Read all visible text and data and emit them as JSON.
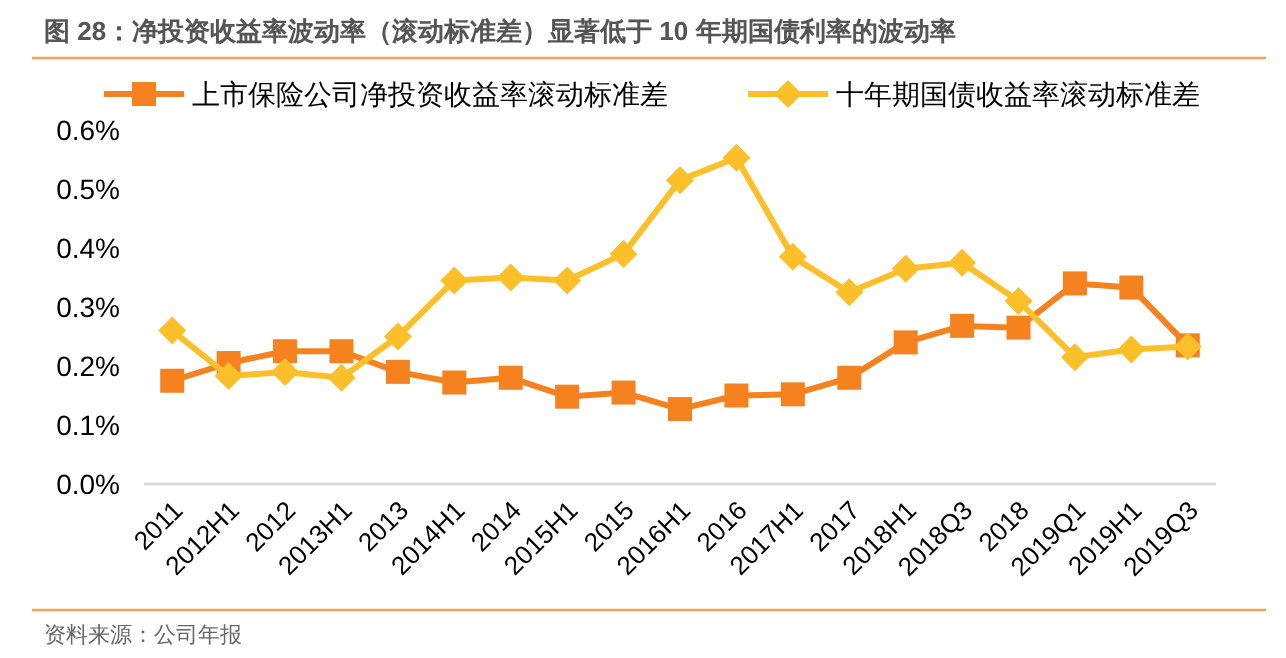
{
  "chart_data": {
    "type": "line",
    "title": "图 28：净投资收益率波动率（滚动标准差）显著低于 10 年期国债利率的波动率",
    "categories": [
      "2011",
      "2012H1",
      "2012",
      "2013H1",
      "2013",
      "2014H1",
      "2014",
      "2015H1",
      "2015",
      "2016H1",
      "2016",
      "2017H1",
      "2017",
      "2018H1",
      "2018Q3",
      "2018",
      "2019Q1",
      "2019H1",
      "2019Q3"
    ],
    "series": [
      {
        "name": "上市保险公司净投资收益率滚动标准差",
        "color": "#f5821f",
        "marker": "square",
        "values": [
          0.175,
          0.205,
          0.225,
          0.225,
          0.19,
          0.172,
          0.18,
          0.148,
          0.155,
          0.127,
          0.15,
          0.152,
          0.18,
          0.24,
          0.268,
          0.265,
          0.34,
          0.333,
          0.235
        ]
      },
      {
        "name": "十年期国债收益率滚动标准差",
        "color": "#fbbf2a",
        "marker": "diamond",
        "values": [
          0.26,
          0.183,
          0.19,
          0.18,
          0.25,
          0.345,
          0.35,
          0.345,
          0.39,
          0.515,
          0.553,
          0.385,
          0.325,
          0.365,
          0.375,
          0.31,
          0.215,
          0.228,
          0.233
        ]
      }
    ],
    "ylim": [
      0,
      0.6
    ],
    "yticks": [
      {
        "value": 0,
        "label": "0.0%"
      },
      {
        "value": 0.1,
        "label": "0.1%"
      },
      {
        "value": 0.2,
        "label": "0.2%"
      },
      {
        "value": 0.3,
        "label": "0.3%"
      },
      {
        "value": 0.4,
        "label": "0.4%"
      },
      {
        "value": 0.5,
        "label": "0.5%"
      },
      {
        "value": 0.6,
        "label": "0.6%"
      }
    ],
    "grid": false,
    "legend": "top",
    "line_style": "solid",
    "annotations": [
      "资料来源：公司年报"
    ]
  }
}
